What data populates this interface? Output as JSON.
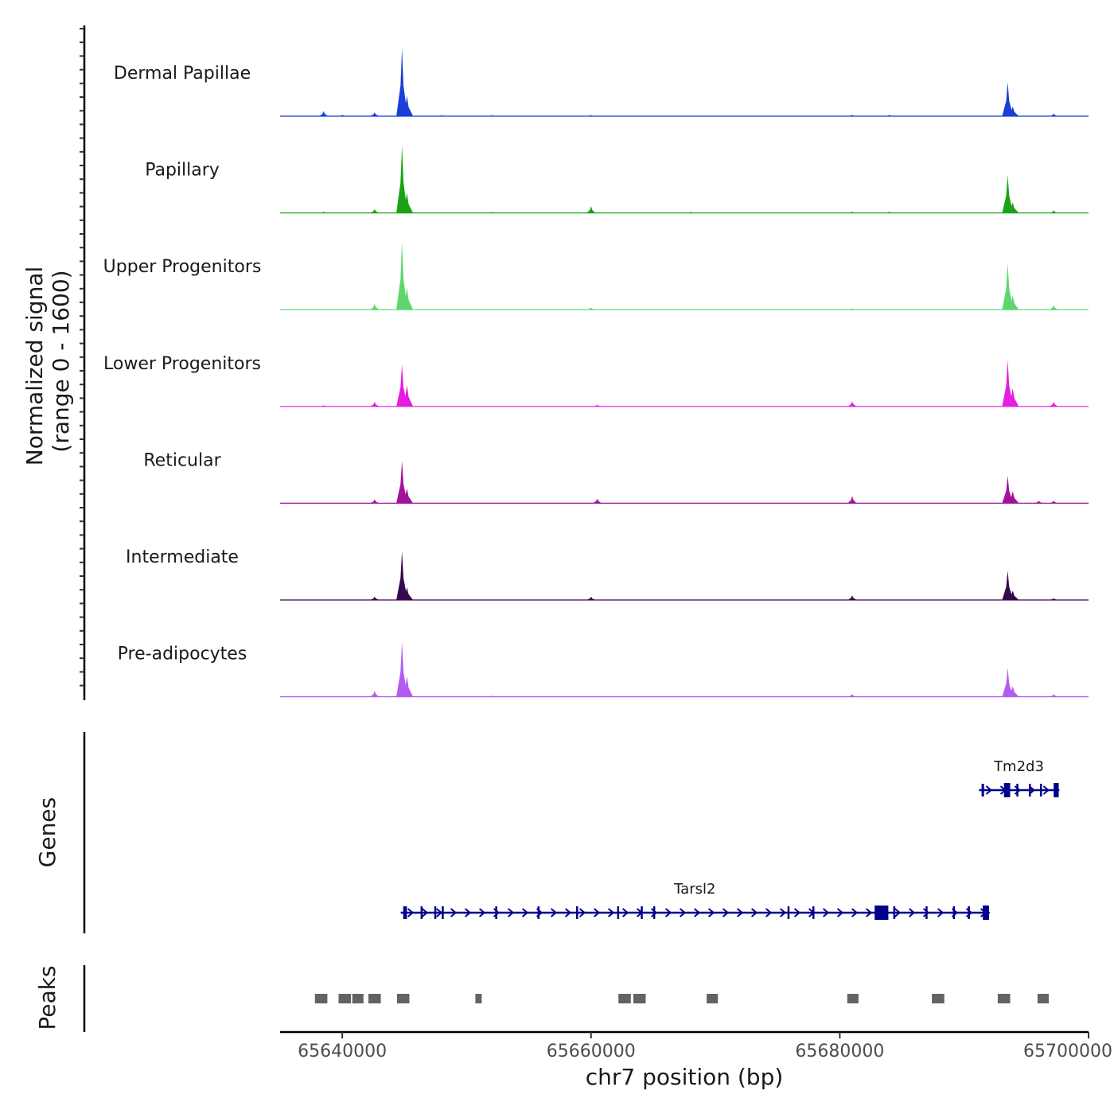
{
  "chart_data": {
    "type": "genome_browser_coverage",
    "chromosome": "chr7",
    "xlim": [
      65635000,
      65700000
    ],
    "x_ticks": [
      65640000,
      65660000,
      65680000,
      65700000
    ],
    "x_tick_labels": [
      "65640000",
      "65660000",
      "65680000",
      "65700000"
    ],
    "xlabel": "chr7 position (bp)",
    "ylabel_line1": "Normalized signal",
    "ylabel_line2": "(range 0 - 1600)",
    "ylim": [
      0,
      1600
    ],
    "tracks": [
      {
        "name": "Dermal Papillae",
        "color": "#1a3fd6",
        "peaks": [
          [
            65638500,
            120
          ],
          [
            65640000,
            30
          ],
          [
            65642600,
            90
          ],
          [
            65644800,
            1600
          ],
          [
            65645200,
            480
          ],
          [
            65648000,
            25
          ],
          [
            65652000,
            25
          ],
          [
            65660000,
            25
          ],
          [
            65681000,
            30
          ],
          [
            65684000,
            30
          ],
          [
            65693500,
            800
          ],
          [
            65693900,
            230
          ],
          [
            65697200,
            60
          ]
        ]
      },
      {
        "name": "Papillary",
        "color": "#1aa314",
        "peaks": [
          [
            65638500,
            30
          ],
          [
            65642600,
            90
          ],
          [
            65644800,
            1600
          ],
          [
            65645200,
            470
          ],
          [
            65652000,
            25
          ],
          [
            65660000,
            160
          ],
          [
            65668000,
            25
          ],
          [
            65681000,
            30
          ],
          [
            65684000,
            30
          ],
          [
            65693500,
            900
          ],
          [
            65693900,
            250
          ],
          [
            65697200,
            60
          ]
        ]
      },
      {
        "name": "Upper Progenitors",
        "color": "#5ed66e",
        "peaks": [
          [
            65642600,
            140
          ],
          [
            65644800,
            1600
          ],
          [
            65645200,
            520
          ],
          [
            65660000,
            50
          ],
          [
            65681000,
            30
          ],
          [
            65693500,
            1100
          ],
          [
            65693900,
            330
          ],
          [
            65697200,
            100
          ]
        ]
      },
      {
        "name": "Lower Progenitors",
        "color": "#e81ce0",
        "peaks": [
          [
            65638500,
            30
          ],
          [
            65642600,
            110
          ],
          [
            65644800,
            1000
          ],
          [
            65645200,
            500
          ],
          [
            65660500,
            40
          ],
          [
            65681000,
            120
          ],
          [
            65693500,
            1100
          ],
          [
            65693900,
            430
          ],
          [
            65697200,
            110
          ]
        ]
      },
      {
        "name": "Reticular",
        "color": "#a3129b",
        "peaks": [
          [
            65642600,
            90
          ],
          [
            65644800,
            1000
          ],
          [
            65645200,
            350
          ],
          [
            65660500,
            110
          ],
          [
            65681000,
            170
          ],
          [
            65693500,
            650
          ],
          [
            65693900,
            280
          ],
          [
            65696000,
            60
          ],
          [
            65697200,
            60
          ]
        ]
      },
      {
        "name": "Intermediate",
        "color": "#36084e",
        "peaks": [
          [
            65642600,
            80
          ],
          [
            65644800,
            1150
          ],
          [
            65645200,
            300
          ],
          [
            65660000,
            80
          ],
          [
            65681000,
            110
          ],
          [
            65693500,
            690
          ],
          [
            65693900,
            220
          ],
          [
            65697200,
            40
          ]
        ]
      },
      {
        "name": "Pre-adipocytes",
        "color": "#b25cf0",
        "peaks": [
          [
            65642600,
            140
          ],
          [
            65644800,
            1300
          ],
          [
            65645200,
            480
          ],
          [
            65652000,
            25
          ],
          [
            65681000,
            60
          ],
          [
            65693500,
            680
          ],
          [
            65693900,
            250
          ],
          [
            65697200,
            60
          ]
        ]
      }
    ],
    "genes_label": "Genes",
    "genes": [
      {
        "name": "Tm2d3",
        "strand": "+",
        "start": 65691200,
        "end": 65697600,
        "exons": [
          [
            65691400,
            65691600
          ],
          [
            65693200,
            65693700
          ],
          [
            65694200,
            65694300
          ],
          [
            65695200,
            65695300
          ],
          [
            65696100,
            65696200
          ],
          [
            65697200,
            65697600
          ]
        ]
      },
      {
        "name": "Tarsl2",
        "strand": "+",
        "start": 65644700,
        "end": 65692000,
        "exons": [
          [
            65644900,
            65645200
          ],
          [
            65646300,
            65646400
          ],
          [
            65647400,
            65647500
          ],
          [
            65648000,
            65648100
          ],
          [
            65652300,
            65652400
          ],
          [
            65655700,
            65655800
          ],
          [
            65658800,
            65658900
          ],
          [
            65662100,
            65662200
          ],
          [
            65664000,
            65664100
          ],
          [
            65665000,
            65665100
          ],
          [
            65675800,
            65675900
          ],
          [
            65677800,
            65677900
          ],
          [
            65682800,
            65683900
          ],
          [
            65684300,
            65684400
          ],
          [
            65686900,
            65687000
          ],
          [
            65689100,
            65689200
          ],
          [
            65690300,
            65690400
          ],
          [
            65691500,
            65692000
          ]
        ]
      }
    ],
    "peaks_label": "Peaks",
    "peak_regions": [
      [
        65637800,
        65638800
      ],
      [
        65639700,
        65640700
      ],
      [
        65640800,
        65641700
      ],
      [
        65642100,
        65643100
      ],
      [
        65644400,
        65645400
      ],
      [
        65650700,
        65651200
      ],
      [
        65662200,
        65663200
      ],
      [
        65663400,
        65664400
      ],
      [
        65669300,
        65670200
      ],
      [
        65680600,
        65681500
      ],
      [
        65687400,
        65688400
      ],
      [
        65692700,
        65693700
      ],
      [
        65695900,
        65696800
      ]
    ]
  }
}
